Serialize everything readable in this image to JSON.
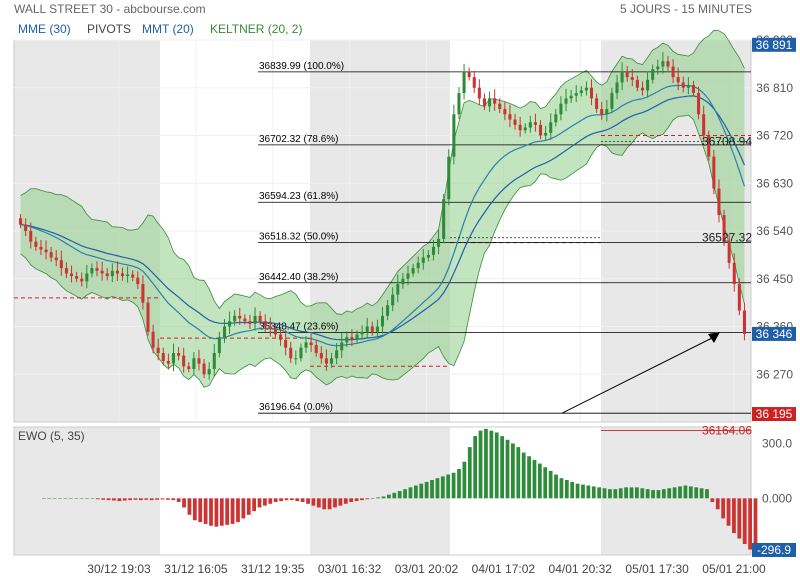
{
  "header": {
    "title": "WALL STREET 30 - abcbourse.com",
    "period": "5 JOURS - 15 MINUTES"
  },
  "legend": [
    {
      "label": "MME (30)",
      "color": "#1f5fa8"
    },
    {
      "label": "PIVOTS",
      "color": "#444444"
    },
    {
      "label": "MMT (20)",
      "color": "#1f5fa8"
    },
    {
      "label": "KELTNER (20, 2)",
      "color": "#3a8a3a"
    }
  ],
  "colors": {
    "up": "#2e8b3a",
    "down": "#cc3333",
    "band_fill": "#8fcf8a",
    "band_line": "#3a8a3a",
    "mme": "#1f5fa8",
    "mmt": "#2a7fb0",
    "shade": "#e8e8e8",
    "price_tag": "#1f5fa8",
    "low_tag": "#cc2222",
    "fib": "#000000",
    "pivot_dash": "#cc2222"
  },
  "chart_data": [
    {
      "type": "candlestick",
      "title": "WALL STREET 30",
      "ylim": [
        36180,
        36900
      ],
      "y_ticks": [
        36900,
        36810,
        36720,
        36630,
        36540,
        36450,
        36360,
        36270
      ],
      "x_ticks": [
        "30/12 19:03",
        "31/12 16:05",
        "31/12 19:35",
        "03/01 16:32",
        "03/01 20:02",
        "04/01 17:02",
        "04/01 20:32",
        "05/01 17:30",
        "05/01 21:00"
      ],
      "price_labels": [
        {
          "value": 36891,
          "label": "36 891",
          "kind": "high"
        },
        {
          "value": 36346,
          "label": "36 346",
          "kind": "last"
        },
        {
          "value": 36195,
          "label": "36 195",
          "kind": "low"
        }
      ],
      "fibonacci": [
        {
          "value": 36839.99,
          "label": "36839.99  (100.0%)"
        },
        {
          "value": 36702.32,
          "label": "36702.32  (78.6%)"
        },
        {
          "value": 36594.23,
          "label": "36594.23  (61.8%)"
        },
        {
          "value": 36518.32,
          "label": "36518.32  (50.0%)"
        },
        {
          "value": 36442.4,
          "label": "36442.40  (38.2%)"
        },
        {
          "value": 36348.47,
          "label": "36348.47  (23.6%)"
        },
        {
          "value": 36196.64,
          "label": "36196.64  (0.0%)"
        }
      ],
      "annotations": [
        {
          "value": 36708.94,
          "label": "36708.94"
        },
        {
          "value": 36527.32,
          "label": "36527.32"
        },
        {
          "value": 36164.06,
          "label": "36164.06"
        }
      ],
      "pivots": [
        36414,
        36338,
        36285,
        36518,
        36720
      ],
      "close_path": [
        36552,
        36540,
        36520,
        36510,
        36505,
        36500,
        36490,
        36485,
        36470,
        36460,
        36455,
        36450,
        36445,
        36460,
        36470,
        36465,
        36460,
        36455,
        36465,
        36460,
        36455,
        36458,
        36452,
        36440,
        36405,
        36350,
        36320,
        36310,
        36295,
        36290,
        36310,
        36305,
        36285,
        36280,
        36300,
        36290,
        36270,
        36280,
        36310,
        36340,
        36360,
        36370,
        36380,
        36375,
        36370,
        36365,
        36380,
        36370,
        36360,
        36355,
        36345,
        36335,
        36320,
        36300,
        36300,
        36320,
        36330,
        36325,
        36310,
        36300,
        36290,
        36300,
        36315,
        36330,
        36340,
        36335,
        36345,
        36350,
        36360,
        36350,
        36360,
        36380,
        36400,
        36420,
        36440,
        36450,
        36460,
        36470,
        36480,
        36490,
        36495,
        36510,
        36525,
        36600,
        36680,
        36760,
        36800,
        36840,
        36830,
        36810,
        36790,
        36775,
        36790,
        36780,
        36770,
        36760,
        36750,
        36740,
        36730,
        36735,
        36745,
        36740,
        36720,
        36725,
        36745,
        36760,
        36780,
        36790,
        36795,
        36800,
        36805,
        36810,
        36790,
        36770,
        36760,
        36770,
        36800,
        36820,
        36840,
        36830,
        36825,
        36810,
        36805,
        36825,
        36845,
        36850,
        36860,
        36850,
        36830,
        36820,
        36810,
        36815,
        36800,
        36760,
        36720,
        36680,
        36620,
        36570,
        36520,
        36480,
        36440,
        36390,
        36346
      ],
      "ewo_path": [
        0,
        0,
        0,
        0,
        0,
        0,
        0,
        0,
        0,
        0,
        -5,
        -8,
        -10,
        -12,
        -15,
        -12,
        -10,
        -8,
        -10,
        -8,
        -10,
        -8,
        -6,
        -8,
        -10,
        -20,
        -50,
        -90,
        -120,
        -130,
        -140,
        -150,
        -155,
        -150,
        -145,
        -140,
        -130,
        -110,
        -90,
        -70,
        -50,
        -40,
        -30,
        -20,
        -15,
        -10,
        -10,
        -15,
        -20,
        -30,
        -40,
        -50,
        -60,
        -60,
        -50,
        -40,
        -30,
        -20,
        -15,
        -10,
        -5,
        0,
        5,
        10,
        20,
        30,
        40,
        50,
        60,
        70,
        80,
        90,
        100,
        110,
        120,
        130,
        140,
        160,
        200,
        280,
        340,
        370,
        380,
        370,
        360,
        340,
        320,
        300,
        280,
        250,
        230,
        210,
        190,
        170,
        150,
        130,
        110,
        100,
        90,
        80,
        75,
        70,
        65,
        60,
        55,
        50,
        50,
        55,
        60,
        60,
        60,
        55,
        50,
        45,
        45,
        50,
        55,
        60,
        65,
        70,
        65,
        60,
        55,
        50,
        -20,
        -60,
        -110,
        -150,
        -190,
        -220,
        -250,
        -280,
        -296.9
      ],
      "ewo_ylim": [
        -310,
        390
      ],
      "ewo_ticks": [
        300,
        0
      ],
      "ewo_labels": [
        {
          "value": -296.9,
          "label": "-296.9"
        }
      ],
      "ewo_title": "EWO (5, 35)"
    }
  ]
}
